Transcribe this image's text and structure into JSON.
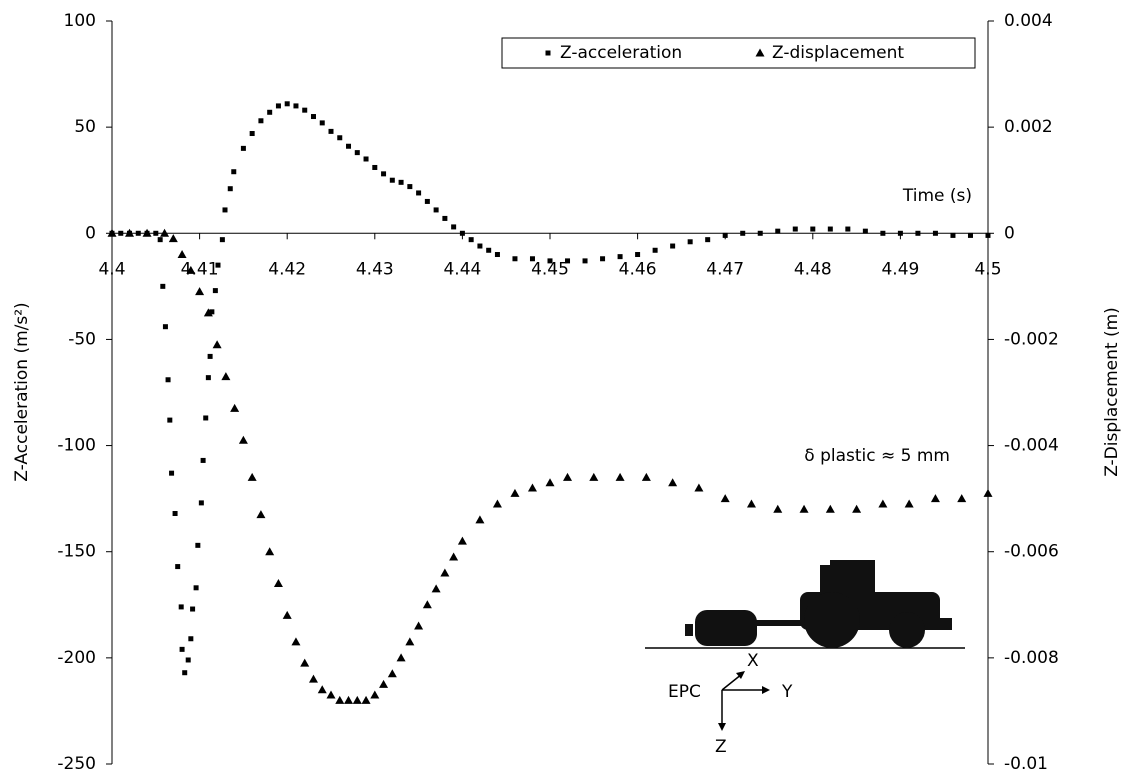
{
  "chart_data": {
    "type": "scatter",
    "x_label": "Time (s)",
    "y_label": "Z-Acceleration (m/s²)",
    "y2_label": "Z-Displacement (m)",
    "xlim": [
      4.4,
      4.5
    ],
    "xticks": [
      4.4,
      4.41,
      4.42,
      4.43,
      4.44,
      4.45,
      4.46,
      4.47,
      4.48,
      4.49,
      4.5
    ],
    "ylim": [
      -250,
      100
    ],
    "yticks": [
      100,
      50,
      0,
      -50,
      -100,
      -150,
      -200,
      -250
    ],
    "y2lim": [
      -0.01,
      0.004
    ],
    "y2ticks": [
      0.004,
      0.002,
      0,
      -0.002,
      -0.004,
      -0.006,
      -0.008,
      -0.01
    ],
    "legend": "upper right",
    "annotations": [
      "δ plastic ≈ 5 mm",
      "EPC",
      "X",
      "Y",
      "Z"
    ],
    "series": [
      {
        "name": "Z-acceleration",
        "marker": "square",
        "color": "#000000",
        "x": [
          4.4,
          4.401,
          4.402,
          4.403,
          4.404,
          4.405,
          4.4055,
          4.4058,
          4.4061,
          4.4064,
          4.4066,
          4.4068,
          4.4072,
          4.4075,
          4.4079,
          4.408,
          4.4083,
          4.4087,
          4.409,
          4.4092,
          4.4096,
          4.4098,
          4.4102,
          4.4104,
          4.4107,
          4.411,
          4.4112,
          4.4114,
          4.4118,
          4.4121,
          4.4126,
          4.4129,
          4.4135,
          4.4139,
          4.415,
          4.416,
          4.417,
          4.418,
          4.419,
          4.42,
          4.421,
          4.422,
          4.423,
          4.424,
          4.425,
          4.426,
          4.427,
          4.428,
          4.429,
          4.43,
          4.431,
          4.432,
          4.433,
          4.434,
          4.435,
          4.436,
          4.437,
          4.438,
          4.439,
          4.44,
          4.441,
          4.442,
          4.443,
          4.444,
          4.446,
          4.448,
          4.45,
          4.452,
          4.454,
          4.456,
          4.458,
          4.46,
          4.462,
          4.464,
          4.466,
          4.468,
          4.47,
          4.472,
          4.474,
          4.476,
          4.478,
          4.48,
          4.482,
          4.484,
          4.486,
          4.488,
          4.49,
          4.492,
          4.494,
          4.496,
          4.498,
          4.5
        ],
        "values": [
          0,
          0,
          0,
          0,
          0,
          0,
          -3,
          -25,
          -44,
          -69,
          -88,
          -113,
          -132,
          -157,
          -176,
          -196,
          -207,
          -201,
          -191,
          -177,
          -167,
          -147,
          -127,
          -107,
          -87,
          -68,
          -58,
          -37,
          -27,
          -15,
          -3,
          11,
          21,
          29,
          40,
          47,
          53,
          57,
          60,
          61,
          60,
          58,
          55,
          52,
          48,
          45,
          41,
          38,
          35,
          31,
          28,
          25,
          24,
          22,
          19,
          15,
          11,
          7,
          3,
          0,
          -3,
          -6,
          -8,
          -10,
          -12,
          -12,
          -13,
          -13,
          -13,
          -12,
          -11,
          -10,
          -8,
          -6,
          -4,
          -3,
          -1,
          0,
          0,
          1,
          2,
          2,
          2,
          2,
          1,
          0,
          0,
          0,
          0,
          -1,
          -1,
          -1
        ]
      },
      {
        "name": "Z-displacement",
        "marker": "triangle",
        "color": "#000000",
        "axis": "y2",
        "x": [
          4.4,
          4.402,
          4.404,
          4.406,
          4.407,
          4.408,
          4.409,
          4.41,
          4.411,
          4.412,
          4.413,
          4.414,
          4.415,
          4.416,
          4.417,
          4.418,
          4.419,
          4.42,
          4.421,
          4.422,
          4.423,
          4.424,
          4.425,
          4.426,
          4.427,
          4.428,
          4.429,
          4.43,
          4.431,
          4.432,
          4.433,
          4.434,
          4.435,
          4.436,
          4.437,
          4.438,
          4.439,
          4.44,
          4.442,
          4.444,
          4.446,
          4.448,
          4.45,
          4.452,
          4.455,
          4.458,
          4.461,
          4.464,
          4.467,
          4.47,
          4.473,
          4.476,
          4.479,
          4.482,
          4.485,
          4.488,
          4.491,
          4.494,
          4.497,
          4.5
        ],
        "values": [
          0,
          0,
          0,
          0,
          -0.0001,
          -0.0004,
          -0.0007,
          -0.0011,
          -0.0015,
          -0.0021,
          -0.0027,
          -0.0033,
          -0.0039,
          -0.0046,
          -0.0053,
          -0.006,
          -0.0066,
          -0.0072,
          -0.0077,
          -0.0081,
          -0.0084,
          -0.0086,
          -0.0087,
          -0.0088,
          -0.0088,
          -0.0088,
          -0.0088,
          -0.0087,
          -0.0085,
          -0.0083,
          -0.008,
          -0.0077,
          -0.0074,
          -0.007,
          -0.0067,
          -0.0064,
          -0.0061,
          -0.0058,
          -0.0054,
          -0.0051,
          -0.0049,
          -0.0048,
          -0.0047,
          -0.0046,
          -0.0046,
          -0.0046,
          -0.0046,
          -0.0047,
          -0.0048,
          -0.005,
          -0.0051,
          -0.0052,
          -0.0052,
          -0.0052,
          -0.0052,
          -0.0051,
          -0.0051,
          -0.005,
          -0.005,
          -0.0049
        ]
      }
    ]
  }
}
